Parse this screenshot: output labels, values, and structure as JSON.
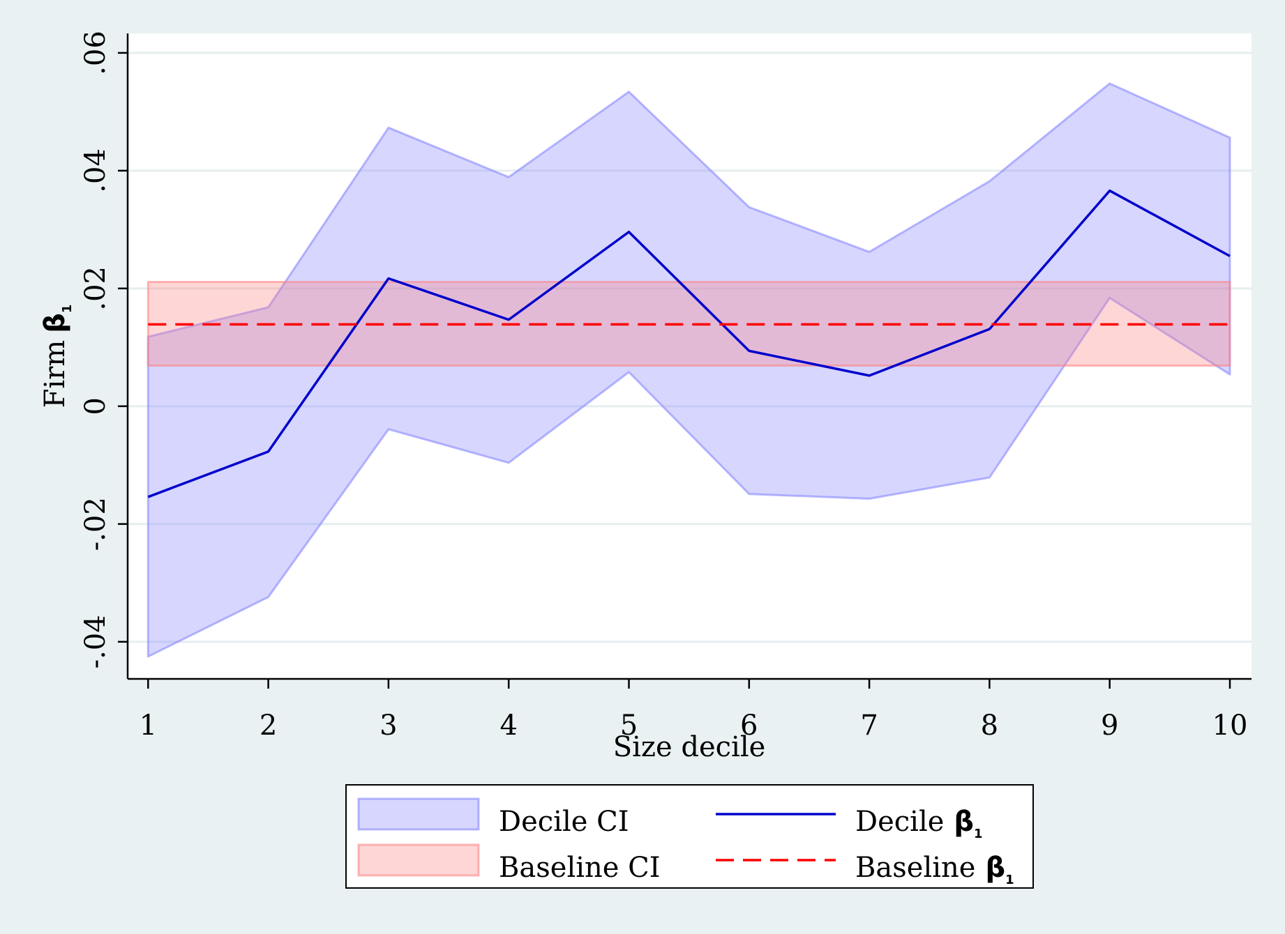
{
  "chart_data": {
    "type": "line",
    "title": "",
    "xlabel": "Size decile",
    "ylabel": "Firm",
    "ylabel_symbol": "β",
    "ylabel_subscript": "1",
    "x": [
      1,
      2,
      3,
      4,
      5,
      6,
      7,
      8,
      9,
      10
    ],
    "x_tick_labels": [
      "1",
      "2",
      "3",
      "4",
      "5",
      "6",
      "7",
      "8",
      "9",
      "10"
    ],
    "y_ticks": [
      -0.04,
      -0.02,
      0,
      0.02,
      0.04,
      0.06
    ],
    "y_tick_labels": [
      "-.04",
      "-.02",
      "0",
      ".02",
      ".04",
      ".06"
    ],
    "xlim": [
      0.83,
      10.18
    ],
    "ylim": [
      -0.0463,
      0.0633
    ],
    "grid": true,
    "legend_position": "bottom",
    "series": [
      {
        "name": "Decile CI",
        "kind": "band",
        "lower": [
          -0.0425,
          -0.0324,
          -0.0039,
          -0.0096,
          0.0058,
          -0.0149,
          -0.0157,
          -0.0121,
          0.0184,
          0.0054
        ],
        "upper": [
          0.0118,
          0.0168,
          0.0473,
          0.0389,
          0.0534,
          0.0338,
          0.0262,
          0.0382,
          0.0548,
          0.0456
        ],
        "color": "#7f7fff"
      },
      {
        "name": "Baseline CI",
        "kind": "band",
        "lower": [
          0.0069,
          0.0069,
          0.0069,
          0.0069,
          0.0069,
          0.0069,
          0.0069,
          0.0069,
          0.0069,
          0.0069
        ],
        "upper": [
          0.0211,
          0.0211,
          0.0211,
          0.0211,
          0.0211,
          0.0211,
          0.0211,
          0.0211,
          0.0211,
          0.0211
        ],
        "color": "#ff7f7f"
      },
      {
        "name": "Decile",
        "kind": "line",
        "values": [
          -0.0154,
          -0.0077,
          0.0217,
          0.0147,
          0.0296,
          0.0094,
          0.0052,
          0.0131,
          0.0366,
          0.0255
        ],
        "color": "#0000cc"
      },
      {
        "name": "Baseline",
        "kind": "dashed",
        "values": [
          0.0139,
          0.0139,
          0.0139,
          0.0139,
          0.0139,
          0.0139,
          0.0139,
          0.0139,
          0.0139,
          0.0139
        ],
        "color": "#ff0000"
      }
    ],
    "legend": [
      {
        "label": "Decile CI",
        "symbol": "",
        "sub": ""
      },
      {
        "label": "Decile",
        "symbol": "β",
        "sub": "1"
      },
      {
        "label": "Baseline CI",
        "symbol": "",
        "sub": ""
      },
      {
        "label": "Baseline",
        "symbol": "β",
        "sub": "1"
      }
    ]
  }
}
